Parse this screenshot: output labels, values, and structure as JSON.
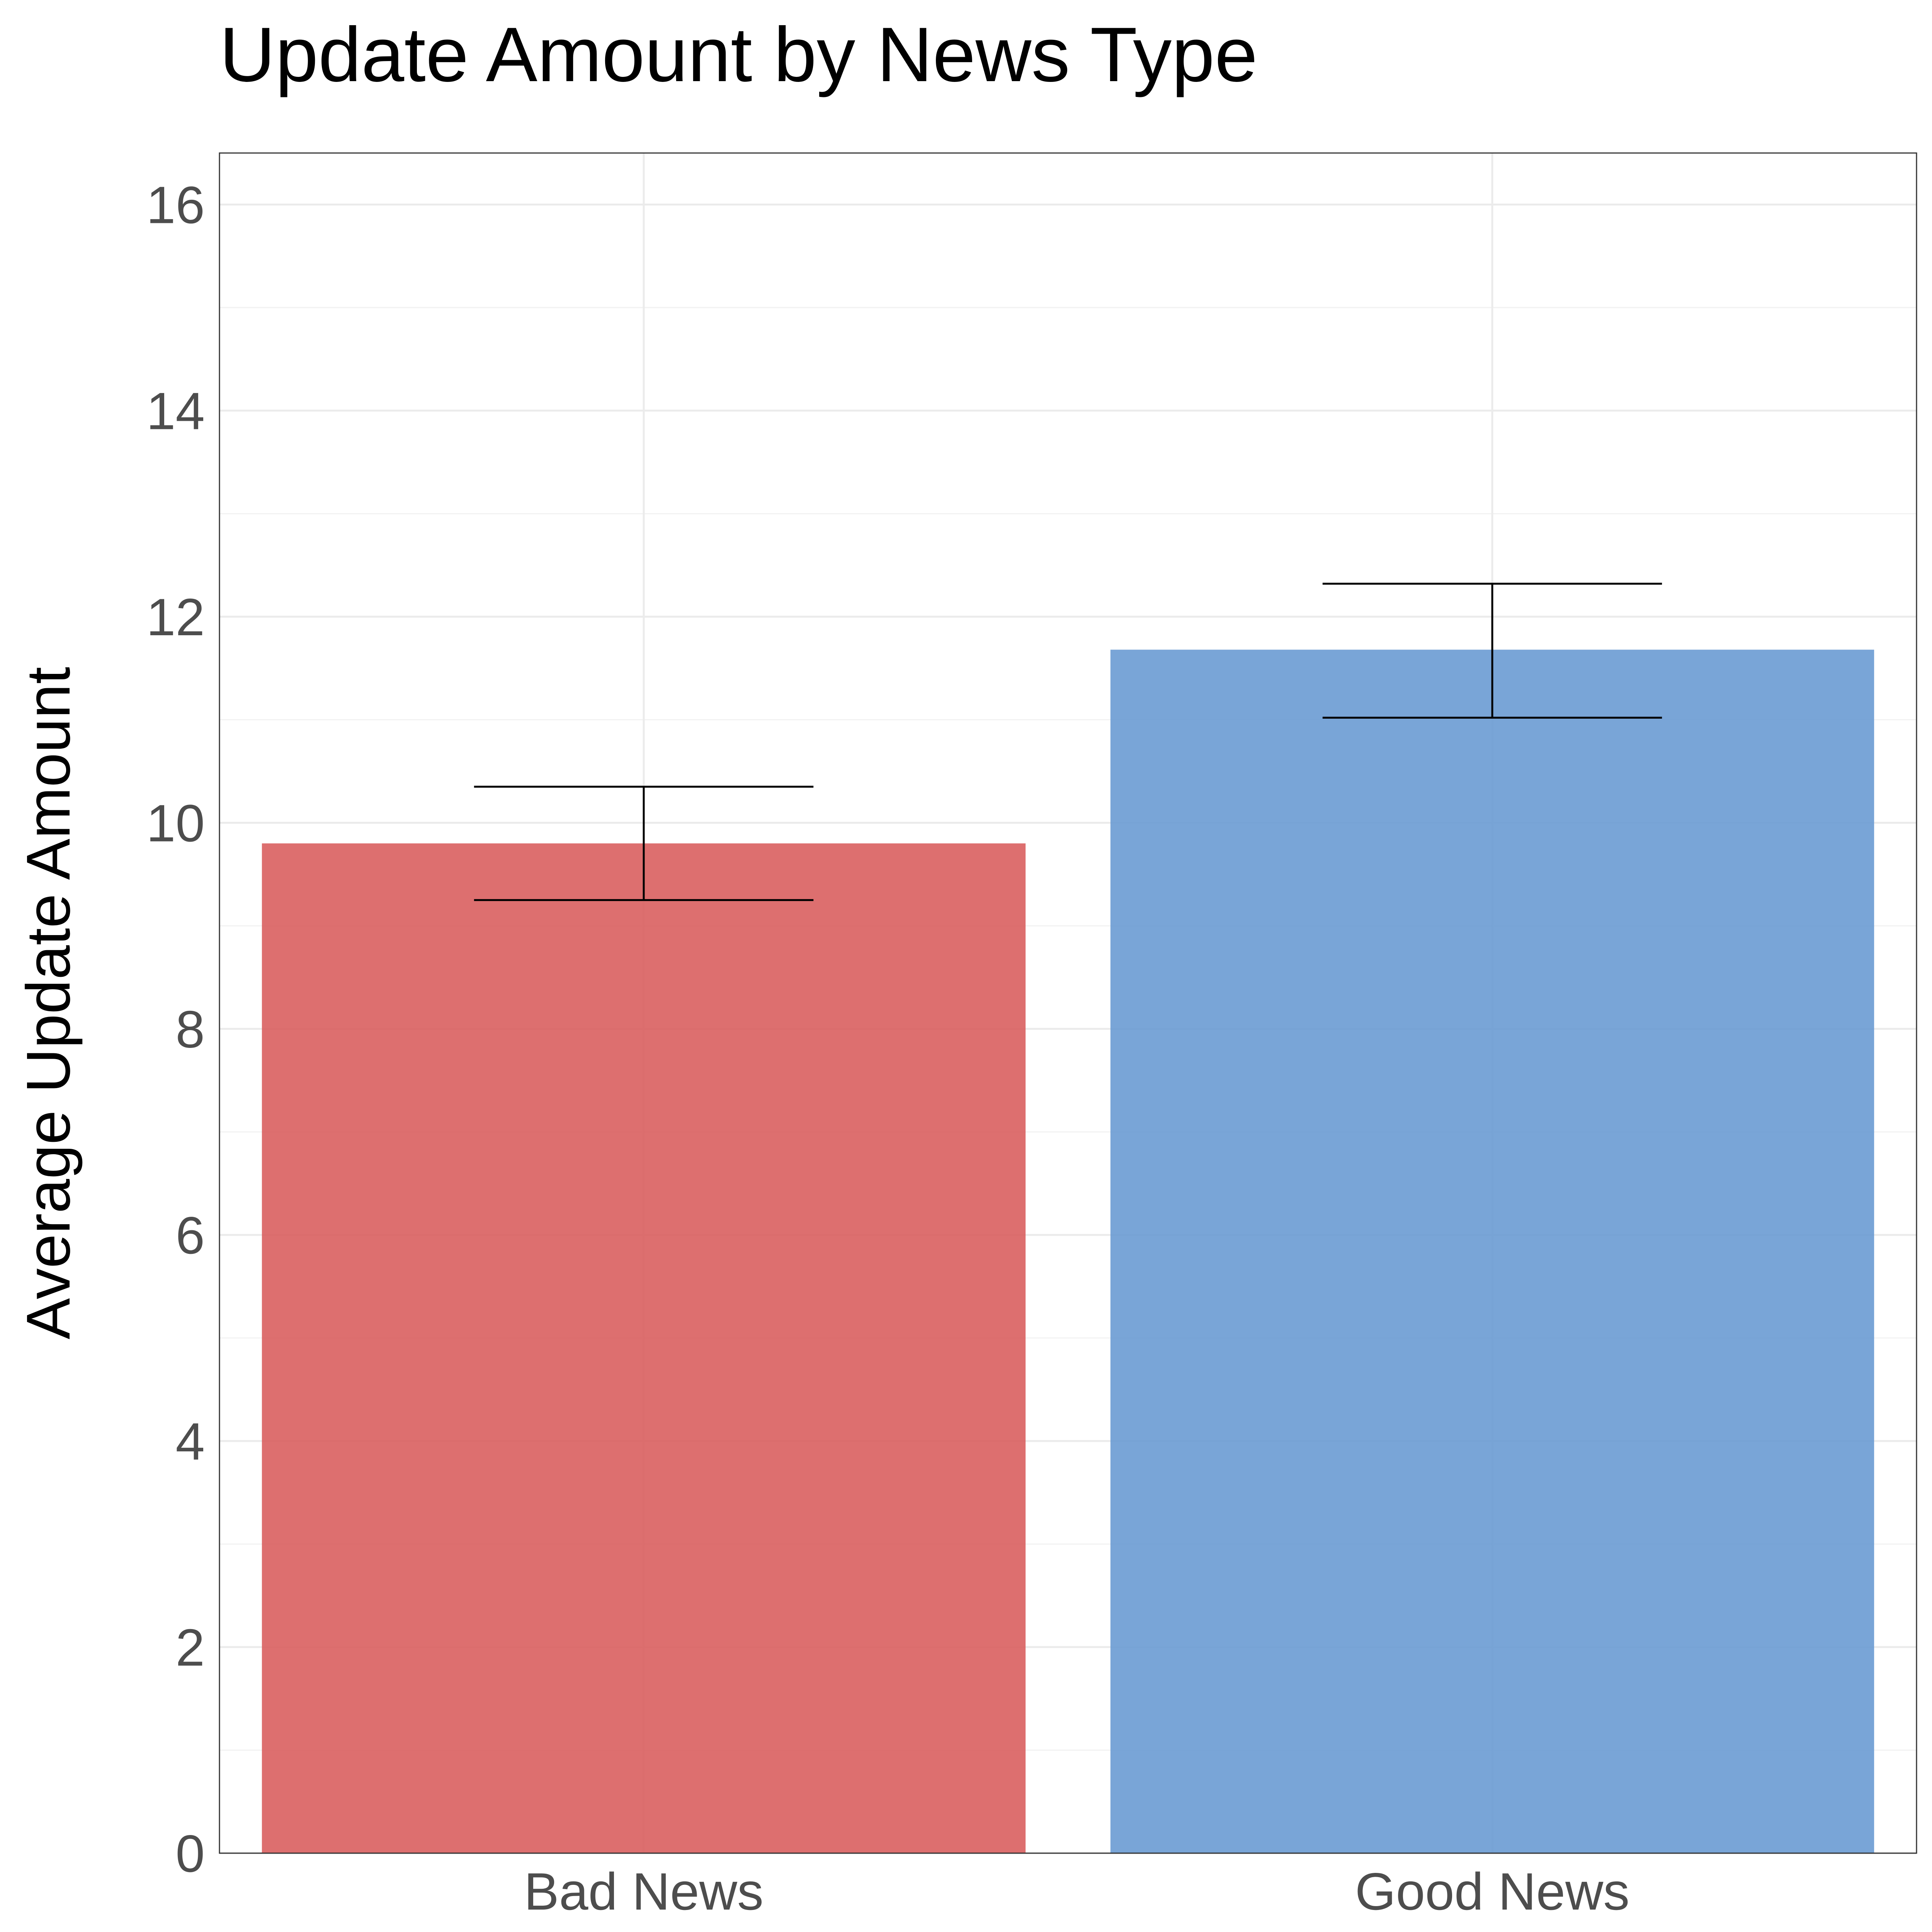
{
  "chart_data": {
    "type": "bar",
    "title": "Update Amount by News Type",
    "xlabel": "",
    "ylabel": "Average Update Amount",
    "categories": [
      "Bad News",
      "Good News"
    ],
    "values": [
      9.8,
      11.68
    ],
    "error_lower": [
      9.25,
      11.02
    ],
    "error_upper": [
      10.35,
      12.32
    ],
    "colors": [
      "#d95f5f",
      "#6a9bd3"
    ],
    "bar_opacity": 0.9,
    "ylim": [
      0,
      16.5
    ],
    "yticks": [
      "0",
      "2",
      "4",
      "6",
      "8",
      "10",
      "12",
      "14",
      "16"
    ],
    "grid": true,
    "legend": "none"
  }
}
